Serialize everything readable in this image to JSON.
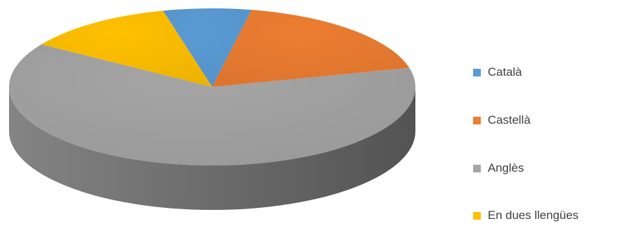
{
  "chart_data": {
    "type": "pie",
    "style": "3d",
    "title": "",
    "categories": [
      "Català",
      "Castellà",
      "Anglès",
      "En dues llengües"
    ],
    "values": [
      7,
      18,
      63,
      12
    ],
    "colors": [
      "#5B9BD5",
      "#ED7D31",
      "#A5A5A5",
      "#FFC000"
    ],
    "legend": "right"
  }
}
